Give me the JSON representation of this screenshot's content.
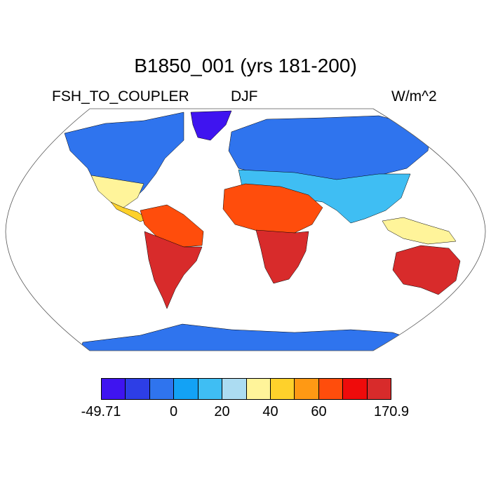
{
  "title": "B1850_001 (yrs 181-200)",
  "left_label": "FSH_TO_COUPLER",
  "center_label": "DJF",
  "right_label": "W/m^2",
  "colorbar": {
    "colors": [
      "#3f14f0",
      "#2d3ee6",
      "#2f74ee",
      "#13a2f5",
      "#3fbef3",
      "#acdcf2",
      "#fff49a",
      "#fed12b",
      "#ff9914",
      "#ff4d0c",
      "#ef0b0b",
      "#d82b2b"
    ],
    "labels": [
      {
        "text": "-49.71",
        "boundary": 0
      },
      {
        "text": "0",
        "boundary": 3
      },
      {
        "text": "20",
        "boundary": 5
      },
      {
        "text": "40",
        "boundary": 7
      },
      {
        "text": "60",
        "boundary": 9
      },
      {
        "text": "170.9",
        "boundary": 12
      }
    ]
  },
  "map": {
    "projection": "Robinson",
    "land_colors": {
      "cold": "#2f74ee",
      "very_cold": "#2d3ee6",
      "coolest": "#3f14f0",
      "light_blue": "#3fbef3",
      "pale_blue": "#acdcf2",
      "pale_yellow": "#fff49a",
      "yellow": "#fed12b",
      "orange": "#ff9914",
      "red_orange": "#ff4d0c",
      "red": "#ef0b0b",
      "dark_red": "#d82b2b",
      "sky": "#13a2f5"
    }
  }
}
